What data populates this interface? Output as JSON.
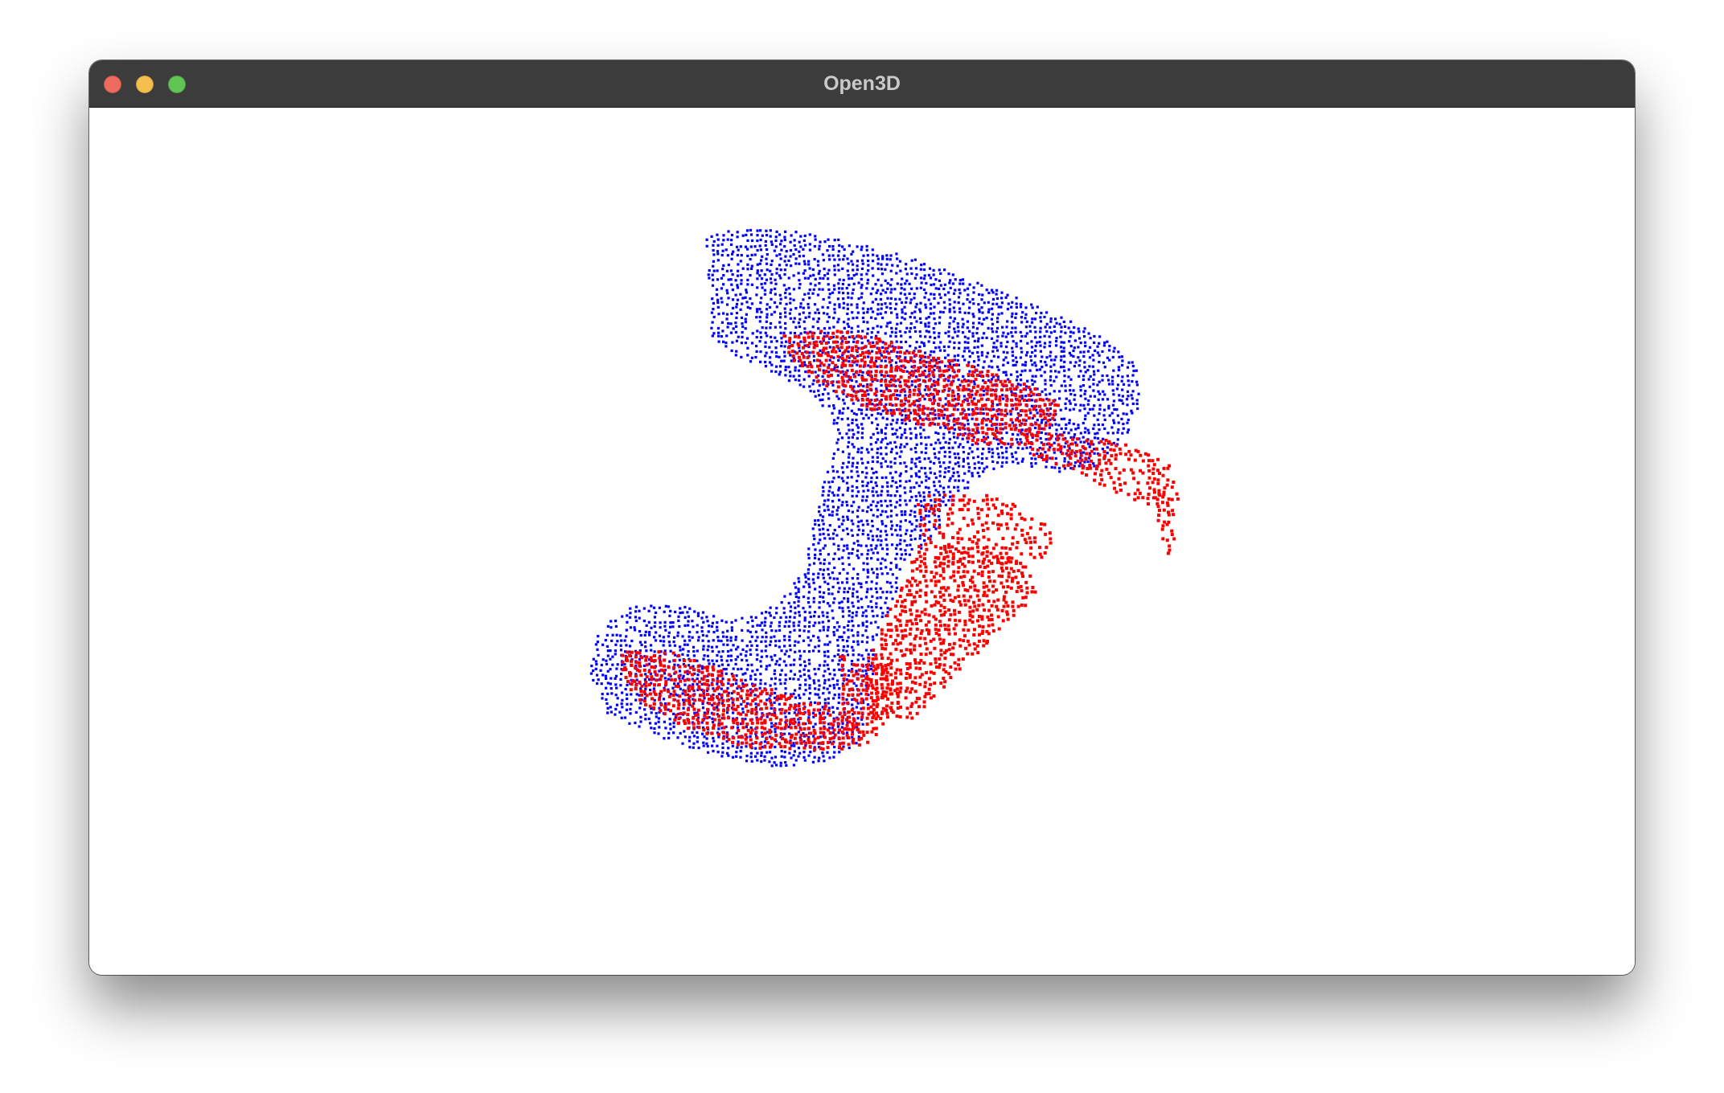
{
  "window": {
    "title": "Open3D",
    "controls": {
      "close_color": "#ed6a5e",
      "minimize_color": "#f5bf4f",
      "maximize_color": "#61c554"
    }
  },
  "viewer": {
    "background_color": "#ffffff",
    "point_clouds": [
      {
        "color": "#0000ff"
      },
      {
        "color": "#ff0000"
      }
    ]
  }
}
